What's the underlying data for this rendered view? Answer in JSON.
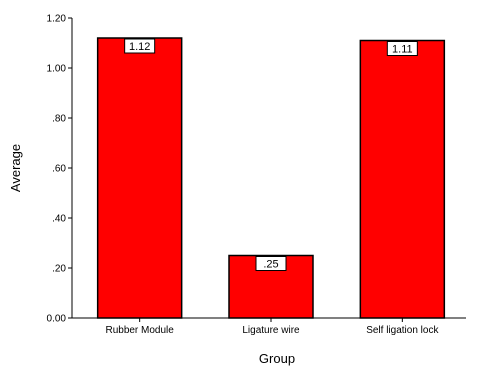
{
  "chart_data": {
    "type": "bar",
    "categories": [
      "Rubber Module",
      "Ligature wire",
      "Self ligation lock"
    ],
    "values": [
      1.12,
      0.25,
      1.11
    ],
    "data_labels": [
      "1.12",
      ".25",
      "1.11"
    ],
    "xlabel": "Group",
    "ylabel": "Average",
    "ylim": [
      0,
      1.2
    ],
    "yticks": [
      0,
      0.2,
      0.4,
      0.6,
      0.8,
      1.0,
      1.2
    ],
    "ytick_labels": [
      "0.00",
      ".20",
      ".40",
      ".60",
      ".80",
      "1.00",
      "1.20"
    ],
    "grid": false,
    "bar_color": "#ff0000",
    "bar_edge_color": "#000000"
  }
}
